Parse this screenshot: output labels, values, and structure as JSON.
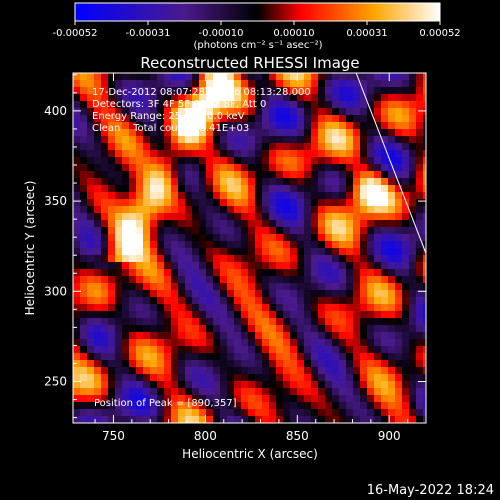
{
  "chart_data": {
    "type": "heatmap",
    "title": "Reconstructed RHESSI Image",
    "xlabel": "Heliocentric X (arcsec)",
    "ylabel": "Heliocentric Y (arcsec)",
    "xlim": [
      728,
      920
    ],
    "ylim": [
      227,
      421
    ],
    "xticks": [
      750,
      800,
      850,
      900
    ],
    "yticks": [
      250,
      300,
      350,
      400
    ],
    "colorbar": {
      "min": -0.00052,
      "max": 0.00052,
      "ticks": [
        "-0.00052",
        "-0.00031",
        "-0.00010",
        "0.00010",
        "0.00031",
        "0.00052"
      ],
      "unit_label": "(photons cm⁻² s⁻¹ asec⁻²)",
      "colormap": [
        "#0000ff",
        "#4a1a8c",
        "#000000",
        "#ff0000",
        "#ffa500",
        "#ffffff"
      ]
    },
    "annotations": {
      "time": "17-Dec-2012 08:07:28.000 to 08:13:28.000",
      "detectors": "Detectors: 3F 4F 5F 6F 7F 8F, Att 0",
      "energy": "Energy Range: 25.0 - 50.0 keV",
      "clean": "Clean    Total counts: 8.41E+03",
      "peak": "Position of Peak = [890,357]"
    },
    "peak": [
      890,
      357
    ],
    "limb_line": [
      [
        882,
        421
      ],
      [
        920,
        321
      ]
    ]
  },
  "footer": {
    "timestamp": "16-May-2022 18:24"
  }
}
